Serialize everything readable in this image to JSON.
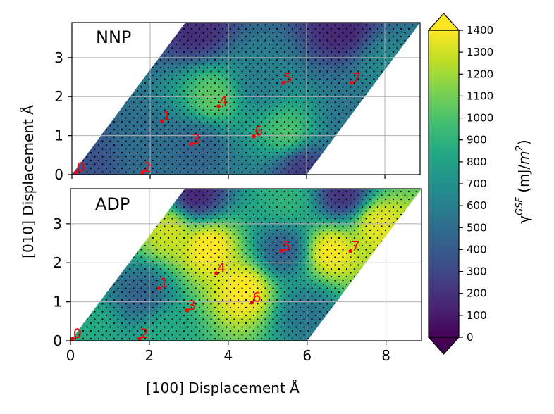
{
  "figure": {
    "ylabel": "[010] Displacement Å",
    "xlabel": "[100] Displacement Å"
  },
  "chart_data": [
    {
      "type": "heatmap",
      "panel_label": "NNP",
      "xlim": [
        0,
        8.9
      ],
      "ylim": [
        0,
        3.9
      ],
      "xticks": [
        0,
        2,
        4,
        6,
        8
      ],
      "yticks": [
        0,
        1,
        2,
        3
      ],
      "grid": true,
      "domain": "parallelogram with corners (0,0), (6,0), (8.9,3.9), (2.9,3.9)",
      "points": [
        {
          "label": "0",
          "x": 0.1,
          "y": 0.05
        },
        {
          "label": "1",
          "x": 2.3,
          "y": 1.37
        },
        {
          "label": "2",
          "x": 1.8,
          "y": 0.05
        },
        {
          "label": "3",
          "x": 3.05,
          "y": 0.78
        },
        {
          "label": "4",
          "x": 3.75,
          "y": 1.75
        },
        {
          "label": "5",
          "x": 5.4,
          "y": 2.35
        },
        {
          "label": "6",
          "x": 4.65,
          "y": 0.98
        },
        {
          "label": "7",
          "x": 7.15,
          "y": 2.35
        }
      ],
      "field_features": [
        {
          "x": 3.6,
          "y": 2.0,
          "value": 1050
        },
        {
          "x": 5.5,
          "y": 1.1,
          "value": 1000
        },
        {
          "x": 7.2,
          "y": 1.5,
          "value": 550
        },
        {
          "x": 4.8,
          "y": 2.4,
          "value": 600
        },
        {
          "x": 3.2,
          "y": 0.75,
          "value": 450
        },
        {
          "x": 2.0,
          "y": 0.7,
          "value": 500
        },
        {
          "x": 3.2,
          "y": 3.75,
          "value": 180
        },
        {
          "x": 6.9,
          "y": 3.75,
          "value": 150
        },
        {
          "x": 5.9,
          "y": 0.15,
          "value": 250
        },
        {
          "x": 0.3,
          "y": 0.2,
          "value": 350
        },
        {
          "x": 8.0,
          "y": 2.8,
          "value": 650
        }
      ]
    },
    {
      "type": "heatmap",
      "panel_label": "ADP",
      "xlim": [
        0,
        8.9
      ],
      "ylim": [
        0,
        3.9
      ],
      "xticks": [
        0,
        2,
        4,
        6,
        8
      ],
      "yticks": [
        0,
        1,
        2,
        3
      ],
      "grid": true,
      "domain": "parallelogram with corners (0,0), (6,0), (8.9,3.9), (2.9,3.9)",
      "points": [
        {
          "label": "0",
          "x": 0.05,
          "y": 0.05
        },
        {
          "label": "1",
          "x": 2.25,
          "y": 1.35
        },
        {
          "label": "2",
          "x": 1.75,
          "y": 0.05
        },
        {
          "label": "3",
          "x": 2.95,
          "y": 0.78
        },
        {
          "label": "4",
          "x": 3.7,
          "y": 1.73
        },
        {
          "label": "5",
          "x": 5.35,
          "y": 2.3
        },
        {
          "label": "6",
          "x": 4.6,
          "y": 0.98
        },
        {
          "label": "7",
          "x": 7.1,
          "y": 2.3
        }
      ],
      "field_features": [
        {
          "x": 3.5,
          "y": 2.4,
          "value": 1420
        },
        {
          "x": 4.4,
          "y": 1.3,
          "value": 1420
        },
        {
          "x": 6.6,
          "y": 2.3,
          "value": 1400
        },
        {
          "x": 2.5,
          "y": 2.8,
          "value": 1300
        },
        {
          "x": 7.8,
          "y": 3.0,
          "value": 1350
        },
        {
          "x": 5.4,
          "y": 2.35,
          "value": 420
        },
        {
          "x": 1.8,
          "y": 1.2,
          "value": 450
        },
        {
          "x": 6.0,
          "y": 0.7,
          "value": 550
        },
        {
          "x": 3.2,
          "y": 3.75,
          "value": 150
        },
        {
          "x": 6.9,
          "y": 3.75,
          "value": 200
        },
        {
          "x": 0.5,
          "y": 0.3,
          "value": 850
        },
        {
          "x": 2.4,
          "y": 0.2,
          "value": 850
        },
        {
          "x": 5.5,
          "y": 3.6,
          "value": 900
        }
      ]
    }
  ],
  "colorbar": {
    "label": "γGSF (mJ/m2)",
    "min": 0,
    "max": 1400,
    "ticks": [
      0,
      100,
      200,
      300,
      400,
      500,
      600,
      700,
      800,
      900,
      1000,
      1100,
      1200,
      1300,
      1400
    ],
    "colormap": "viridis",
    "extend": "both"
  },
  "colors": {
    "marker": "#ff0000",
    "grid": "#b0b0b0",
    "hatch": "#000000"
  }
}
